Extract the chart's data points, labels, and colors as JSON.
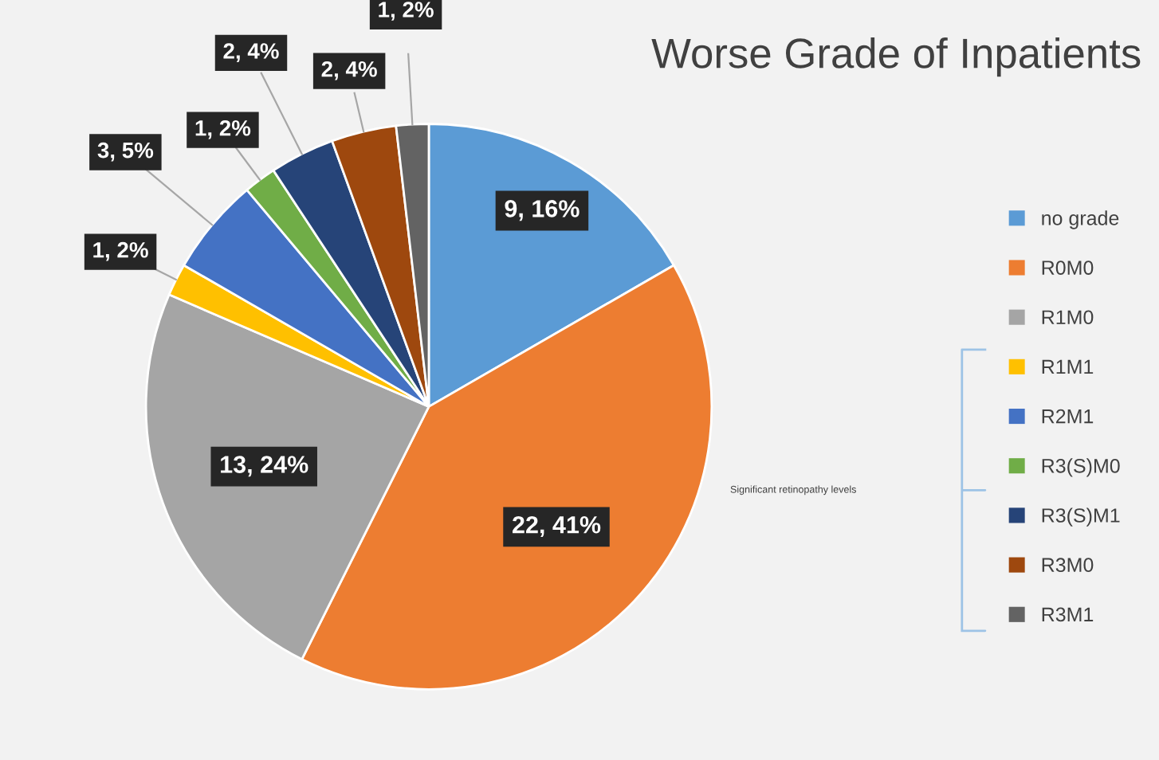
{
  "chart_data": {
    "type": "pie",
    "title": "Worse Grade of Inpatients",
    "categories": [
      "no grade",
      "R0M0",
      "R1M0",
      "R1M1",
      "R2M1",
      "R3(S)M0",
      "R3(S)M1",
      "R3M0",
      "R3M1"
    ],
    "values": [
      9,
      22,
      13,
      1,
      3,
      1,
      2,
      2,
      1
    ],
    "colors": [
      "#5b9bd5",
      "#ed7d31",
      "#a5a5a5",
      "#ffc000",
      "#4472c4",
      "#70ad47",
      "#264478",
      "#9e480e",
      "#636363"
    ],
    "value_labels": [
      "9, 16%",
      "22, 41%",
      "13, 24%",
      "1, 2%",
      "3, 5%",
      "1, 2%",
      "2, 4%",
      "2, 4%",
      "1, 2%"
    ],
    "legend": "right",
    "annotations": [
      "Significant retinopathy levels"
    ]
  }
}
